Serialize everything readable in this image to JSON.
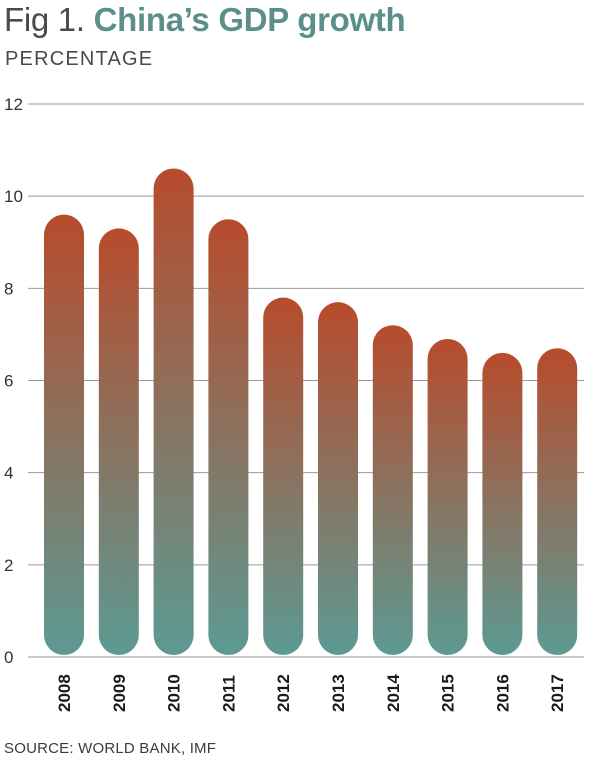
{
  "header": {
    "fig_label": "Fig 1.",
    "title": "China’s GDP growth",
    "subtitle": "PERCENTAGE"
  },
  "footer": {
    "source": "SOURCE: WORLD BANK, IMF"
  },
  "colors": {
    "bar_top": "#b84b2c",
    "bar_bottom": "#5c9a93",
    "gridline": "#9a9a9a",
    "title_accent": "#5a9089"
  },
  "chart_data": {
    "type": "bar",
    "title": "China’s GDP growth",
    "ylabel": "PERCENTAGE",
    "categories": [
      "2008",
      "2009",
      "2010",
      "2011",
      "2012",
      "2013",
      "2014",
      "2015",
      "2016",
      "2017"
    ],
    "values": [
      9.6,
      9.3,
      10.6,
      9.5,
      7.8,
      7.7,
      7.2,
      6.9,
      6.6,
      6.7
    ],
    "ylim": [
      0,
      12
    ],
    "yticks": [
      0,
      2,
      4,
      6,
      8,
      10,
      12
    ],
    "grid": true,
    "legend": "none"
  }
}
